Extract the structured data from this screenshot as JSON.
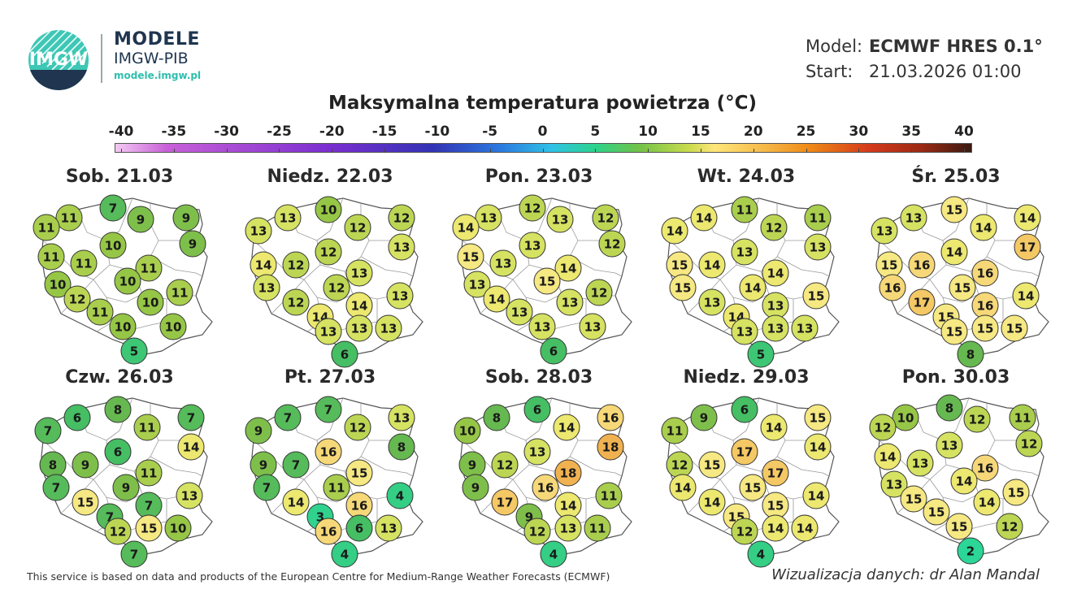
{
  "brand": {
    "logo_text": "IMGW",
    "title": "MODELE",
    "subtitle": "IMGW-PIB",
    "url": "modele.imgw.pl",
    "accent_color": "#2dbfae"
  },
  "model_info": {
    "model_label": "Model:",
    "model_value": "ECMWF HRES 0.1°",
    "start_label": "Start:",
    "start_value": "21.03.2026 01:00"
  },
  "title": "Maksymalna temperatura powietrza (°C)",
  "scale": {
    "ticks": [
      "-40",
      "-35",
      "-30",
      "-25",
      "-20",
      "-15",
      "-10",
      "-5",
      "0",
      "5",
      "10",
      "15",
      "20",
      "25",
      "30",
      "35",
      "40"
    ]
  },
  "days": [
    {
      "label": "Sob. 21.03",
      "values": [
        11,
        7,
        9,
        9,
        11,
        9,
        11,
        10,
        11,
        11,
        10,
        10,
        11,
        12,
        10,
        11,
        10,
        10,
        5
      ]
    },
    {
      "label": "Niedz. 22.03",
      "values": [
        13,
        10,
        12,
        12,
        13,
        13,
        12,
        14,
        12,
        13,
        13,
        12,
        13,
        12,
        14,
        14,
        13,
        13,
        13,
        6
      ]
    },
    {
      "label": "Pon. 23.03",
      "values": [
        13,
        12,
        13,
        12,
        14,
        12,
        15,
        13,
        13,
        14,
        13,
        15,
        12,
        14,
        13,
        13,
        13,
        13,
        6
      ]
    },
    {
      "label": "Wt. 24.03",
      "values": [
        14,
        11,
        12,
        11,
        14,
        13,
        13,
        15,
        14,
        14,
        15,
        14,
        15,
        13,
        13,
        14,
        13,
        13,
        13,
        5
      ]
    },
    {
      "label": "Śr. 25.03",
      "values": [
        13,
        15,
        14,
        14,
        13,
        17,
        14,
        15,
        16,
        16,
        16,
        15,
        14,
        17,
        16,
        15,
        15,
        15,
        15,
        8
      ]
    },
    {
      "label": "Czw. 26.03",
      "values": [
        6,
        8,
        11,
        7,
        7,
        14,
        6,
        8,
        9,
        11,
        7,
        9,
        13,
        15,
        7,
        7,
        15,
        10,
        12,
        7
      ]
    },
    {
      "label": "Pt. 27.03",
      "values": [
        7,
        7,
        12,
        13,
        9,
        8,
        16,
        9,
        7,
        15,
        7,
        11,
        4,
        14,
        16,
        3,
        6,
        13,
        16,
        4
      ]
    },
    {
      "label": "Sob. 28.03",
      "values": [
        8,
        6,
        14,
        16,
        10,
        18,
        13,
        9,
        12,
        18,
        9,
        16,
        11,
        17,
        14,
        9,
        13,
        11,
        12,
        4
      ]
    },
    {
      "label": "Niedz. 29.03",
      "values": [
        9,
        6,
        14,
        15,
        11,
        14,
        17,
        12,
        15,
        17,
        14,
        15,
        14,
        14,
        15,
        15,
        14,
        14,
        12,
        4
      ]
    },
    {
      "label": "Pon. 30.03",
      "values": [
        10,
        8,
        12,
        11,
        12,
        12,
        14,
        13,
        13,
        16,
        13,
        14,
        15,
        15,
        14,
        15,
        15,
        12,
        2
      ]
    }
  ],
  "footer": {
    "source": "This service is based on data and products of the European Centre for Medium-Range Weather Forecasts (ECMWF)",
    "credit": "Wizualizacja danych: dr Alan Mandal"
  }
}
